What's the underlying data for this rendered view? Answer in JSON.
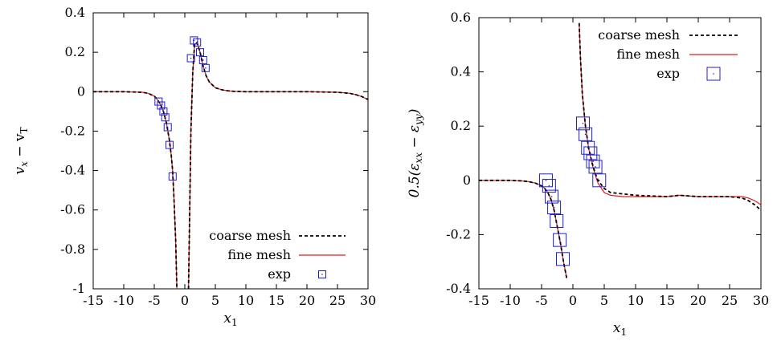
{
  "chart_data": [
    {
      "type": "line",
      "xlabel": "x1",
      "ylabel": "v_x − v_T",
      "xlim": [
        -15,
        30
      ],
      "ylim": [
        -1,
        0.4
      ],
      "xticks": [
        "-15",
        "-10",
        "-5",
        "0",
        "5",
        "10",
        "15",
        "20",
        "25",
        "30"
      ],
      "yticks": [
        "0.4",
        "0.2",
        "0",
        "-0.2",
        "-0.4",
        "-0.6",
        "-0.8",
        "-1"
      ],
      "legend_position": "bottom-right",
      "series": [
        {
          "name": "coarse mesh",
          "style": "dashed",
          "color": "#000000",
          "x": [
            -15,
            -10,
            -7,
            -6,
            -5,
            -4.5,
            -4,
            -3.5,
            -3,
            -2.5,
            -2.2,
            -2,
            -1.8,
            -1.5,
            -1.3,
            null,
            0.6,
            0.8,
            1,
            1.3,
            1.6,
            2,
            2.5,
            3,
            3.5,
            4,
            5,
            6,
            7,
            8,
            10,
            15,
            20,
            25,
            27,
            28,
            29,
            30
          ],
          "y": [
            0,
            0,
            -0.003,
            -0.008,
            -0.022,
            -0.04,
            -0.063,
            -0.1,
            -0.16,
            -0.25,
            -0.33,
            -0.4,
            -0.52,
            -0.75,
            -1,
            null,
            -1,
            -0.6,
            -0.2,
            0.1,
            0.24,
            0.25,
            0.2,
            0.13,
            0.08,
            0.05,
            0.02,
            0.01,
            0.005,
            0.002,
            0,
            0,
            0,
            -0.003,
            -0.008,
            -0.015,
            -0.025,
            -0.04
          ]
        },
        {
          "name": "fine mesh",
          "style": "solid",
          "color": "#e31a1c",
          "x": [
            -15,
            -10,
            -7,
            -6,
            -5,
            -4.5,
            -4,
            -3.5,
            -3,
            -2.5,
            -2.2,
            -2,
            -1.8,
            -1.5,
            -1.3,
            null,
            0.6,
            0.8,
            1,
            1.3,
            1.6,
            2,
            2.5,
            3,
            3.5,
            4,
            5,
            6,
            7,
            8,
            10,
            15,
            20,
            25,
            27,
            28,
            29,
            30
          ],
          "y": [
            0,
            0,
            -0.003,
            -0.008,
            -0.022,
            -0.04,
            -0.063,
            -0.1,
            -0.16,
            -0.25,
            -0.33,
            -0.4,
            -0.52,
            -0.75,
            -1,
            null,
            -1,
            -0.6,
            -0.2,
            0.1,
            0.24,
            0.25,
            0.2,
            0.13,
            0.08,
            0.05,
            0.02,
            0.01,
            0.005,
            0.002,
            0,
            0,
            0,
            -0.003,
            -0.008,
            -0.015,
            -0.025,
            -0.04
          ]
        },
        {
          "name": "exp",
          "style": "markers",
          "color": "#1f1fd0",
          "marker_size": "small",
          "x": [
            -4.3,
            -3.9,
            -3.5,
            -3.2,
            -2.8,
            -2.5,
            -2.0,
            1.0,
            1.5,
            2.0,
            2.5,
            3.0,
            3.4
          ],
          "y": [
            -0.05,
            -0.07,
            -0.1,
            -0.13,
            -0.18,
            -0.27,
            -0.43,
            0.17,
            0.26,
            0.25,
            0.2,
            0.16,
            0.12
          ]
        }
      ]
    },
    {
      "type": "line",
      "xlabel": "x1",
      "ylabel": "0.5(ε_xx − ε_yy)",
      "xlim": [
        -15,
        30
      ],
      "ylim": [
        -0.4,
        0.6
      ],
      "xticks": [
        "-15",
        "-10",
        "-5",
        "0",
        "5",
        "10",
        "15",
        "20",
        "25",
        "30"
      ],
      "yticks": [
        "0.6",
        "0.4",
        "0.2",
        "0",
        "-0.2",
        "-0.4"
      ],
      "legend_position": "top-right",
      "series": [
        {
          "name": "coarse mesh",
          "style": "dashed",
          "color": "#000000",
          "x": [
            -15,
            -10,
            -8,
            -7,
            -6,
            -5,
            -4.5,
            -4,
            -3.5,
            -3,
            -2.5,
            -2,
            -1.5,
            -1,
            null,
            1,
            1.2,
            1.5,
            2,
            2.5,
            3,
            3.5,
            4,
            5,
            6,
            8,
            10,
            15,
            17,
            20,
            25,
            27,
            28,
            29,
            30
          ],
          "y": [
            0,
            0,
            -0.002,
            -0.005,
            -0.01,
            -0.02,
            -0.03,
            -0.045,
            -0.07,
            -0.11,
            -0.17,
            -0.23,
            -0.3,
            -0.36,
            null,
            0.58,
            0.45,
            0.32,
            0.2,
            0.12,
            0.07,
            0.03,
            0,
            -0.03,
            -0.045,
            -0.05,
            -0.055,
            -0.06,
            -0.055,
            -0.06,
            -0.06,
            -0.065,
            -0.075,
            -0.09,
            -0.11
          ]
        },
        {
          "name": "fine mesh",
          "style": "solid",
          "color": "#e31a1c",
          "x": [
            -15,
            -10,
            -8,
            -7,
            -6,
            -5,
            -4.5,
            -4,
            -3.5,
            -3,
            -2.5,
            -2,
            -1.5,
            -1,
            null,
            1,
            1.2,
            1.5,
            2,
            2.5,
            3,
            3.5,
            4,
            5,
            6,
            8,
            10,
            15,
            17,
            20,
            25,
            27,
            28,
            29,
            30
          ],
          "y": [
            0,
            0,
            -0.002,
            -0.005,
            -0.01,
            -0.02,
            -0.03,
            -0.045,
            -0.07,
            -0.11,
            -0.17,
            -0.23,
            -0.3,
            -0.36,
            null,
            0.58,
            0.45,
            0.32,
            0.2,
            0.12,
            0.065,
            0.025,
            -0.01,
            -0.045,
            -0.055,
            -0.06,
            -0.06,
            -0.06,
            -0.055,
            -0.06,
            -0.06,
            -0.06,
            -0.065,
            -0.075,
            -0.09
          ]
        },
        {
          "name": "exp",
          "style": "markers",
          "color": "#1f1fd0",
          "marker_size": "large",
          "x": [
            -4.3,
            -3.8,
            -3.4,
            -3.0,
            -2.6,
            -2.1,
            -1.6,
            1.6,
            2.0,
            2.4,
            2.8,
            3.2,
            3.6,
            4.2
          ],
          "y": [
            0,
            -0.02,
            -0.06,
            -0.1,
            -0.15,
            -0.22,
            -0.29,
            0.21,
            0.17,
            0.12,
            0.1,
            0.07,
            0.05,
            0
          ]
        }
      ]
    }
  ]
}
